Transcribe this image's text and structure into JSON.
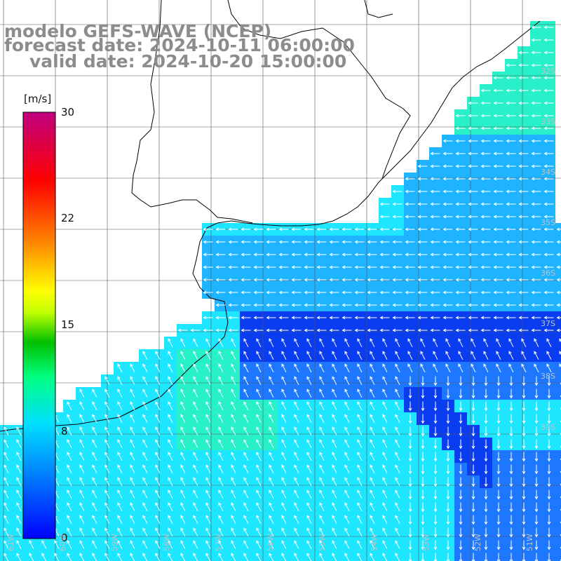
{
  "title": {
    "line1": "modelo GEFS-WAVE (NCEP)",
    "line2": "forecast date: 2024-10-11 06:00:00",
    "line3": "valid date: 2024-10-20 15:00:00"
  },
  "colorbar": {
    "units": "[m/s]",
    "min": 0,
    "max": 30,
    "ticks": [
      "30",
      "22",
      "15",
      "8",
      "0"
    ],
    "tick_values": [
      30,
      22,
      15,
      8,
      0
    ],
    "colors": [
      "#0000ff",
      "#0080ff",
      "#00e0ff",
      "#00ff80",
      "#00c000",
      "#ffff00",
      "#ff8000",
      "#ff0000",
      "#c00080"
    ]
  },
  "lat_labels": [
    "32S",
    "33S",
    "34S",
    "35S",
    "36S",
    "37S",
    "38S",
    "39S"
  ],
  "lon_labels": [
    "61W",
    "60W",
    "59W",
    "58W",
    "57W",
    "56W",
    "55W",
    "54W",
    "53W",
    "52W",
    "51W"
  ],
  "field_colors": {
    "deep_blue": "#0a3cf0",
    "blue": "#1e78ff",
    "light_blue": "#1eb4ff",
    "cyan": "#1ee6ff",
    "aqua_green": "#28f0c8",
    "green": "#3cf0a0"
  },
  "icons": {
    "wind_arrow": "arrow-icon"
  }
}
